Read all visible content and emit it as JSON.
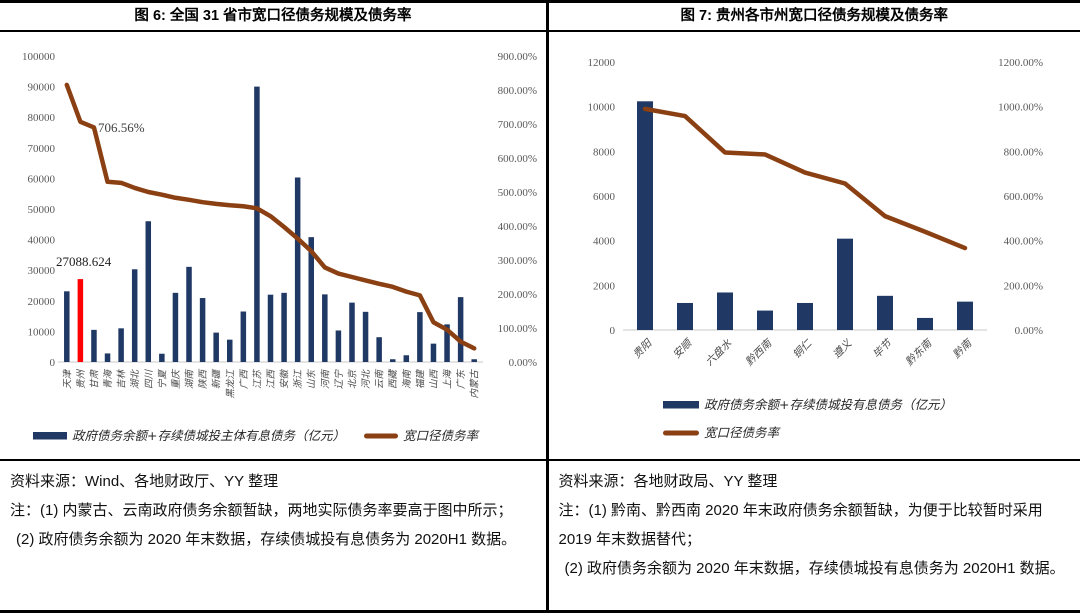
{
  "colors": {
    "bar": "#1F3864",
    "bar_highlight": "#FF0000",
    "line": "#8A4012",
    "axis_text": "#595959"
  },
  "left_panel": {
    "title": "图 6: 全国 31 省市宽口径债务规模及债务率",
    "source": "资料来源：Wind、各地财政厅、YY 整理",
    "note1": "注：(1) 内蒙古、云南政府债务余额暂缺，两地实际债务率要高于图中所示；",
    "note2": "(2) 政府债务余额为 2020 年末数据，存续债城投有息债务为 2020H1 数据。"
  },
  "right_panel": {
    "title": "图 7: 贵州各市州宽口径债务规模及债务率",
    "source": "资料来源：各地财政局、YY 整理",
    "note1": "注：(1) 黔南、黔西南 2020 年末政府债务余额暂缺，为便于比较暂时采用 2019 年末数据替代；",
    "note2": "(2) 政府债务余额为 2020 年末数据，存续债城投有息债务为 2020H1 数据。"
  },
  "chart_data": [
    {
      "type": "bar",
      "subtype": "combo-bar-line-dual-axis",
      "title": "图 6: 全国 31 省市宽口径债务规模及债务率",
      "grid": false,
      "legend_position": "bottom-center-row",
      "categories": [
        "天津",
        "贵州",
        "甘肃",
        "青海",
        "吉林",
        "湖北",
        "四川",
        "宁夏",
        "重庆",
        "湖南",
        "陕西",
        "新疆",
        "黑龙江",
        "广西",
        "江苏",
        "江西",
        "安徽",
        "浙江",
        "山东",
        "河南",
        "辽宁",
        "北京",
        "河北",
        "云南",
        "西藏",
        "海南",
        "福建",
        "山西",
        "上海",
        "广东",
        "内蒙古"
      ],
      "left_axis": {
        "min": 0,
        "max": 100000,
        "step": 10000
      },
      "right_axis": {
        "min": 0,
        "max": 900,
        "step": 100,
        "suffix": "%"
      },
      "series": [
        {
          "name": "政府债务余额+存续债城投主体有息债务（亿元）",
          "type": "bar",
          "axis": "left",
          "color": "#1F3864",
          "highlight_index": 1,
          "highlight_color": "#FF0000",
          "values": [
            23100,
            27088.624,
            10500,
            2800,
            11000,
            30300,
            46000,
            2700,
            22600,
            31100,
            20900,
            9600,
            7300,
            16500,
            90000,
            22000,
            22600,
            60300,
            40800,
            22100,
            10300,
            19400,
            16400,
            8100,
            900,
            2200,
            16300,
            6000,
            12300,
            21200,
            900
          ]
        },
        {
          "name": "宽口径债务率",
          "type": "line",
          "axis": "right",
          "color": "#8A4012",
          "values": [
            815,
            706.56,
            690,
            530,
            527,
            512,
            500,
            492,
            483,
            477,
            470,
            465,
            461,
            458,
            452,
            429,
            397,
            363,
            326,
            278,
            260,
            250,
            240,
            230,
            221,
            207,
            196,
            117,
            95,
            60,
            40
          ]
        }
      ],
      "annotations": [
        {
          "text": "27088.624",
          "refers_to": "贵州 bar value"
        },
        {
          "text": "706.56%",
          "refers_to": "贵州 debt ratio"
        }
      ]
    },
    {
      "type": "bar",
      "subtype": "combo-bar-line-dual-axis",
      "title": "图 7: 贵州各市州宽口径债务规模及债务率",
      "grid": false,
      "legend_position": "bottom-stacked",
      "categories": [
        "贵阳",
        "安顺",
        "六盘水",
        "黔西南",
        "铜仁",
        "遵义",
        "毕节",
        "黔东南",
        "黔南"
      ],
      "left_axis": {
        "min": 0,
        "max": 12000,
        "step": 2000
      },
      "right_axis": {
        "min": 0,
        "max": 1200,
        "step": 200,
        "suffix": "%"
      },
      "series": [
        {
          "name": "政府债务余额+存续债城投有息债务（亿元）",
          "type": "bar",
          "axis": "left",
          "color": "#1F3864",
          "values": [
            10240,
            1210,
            1680,
            870,
            1210,
            4090,
            1530,
            540,
            1270
          ]
        },
        {
          "name": "宽口径债务率",
          "type": "line",
          "axis": "right",
          "color": "#8A4012",
          "values": [
            990,
            958,
            795,
            786,
            705,
            656,
            510,
            440,
            367
          ]
        }
      ],
      "annotations": []
    }
  ]
}
